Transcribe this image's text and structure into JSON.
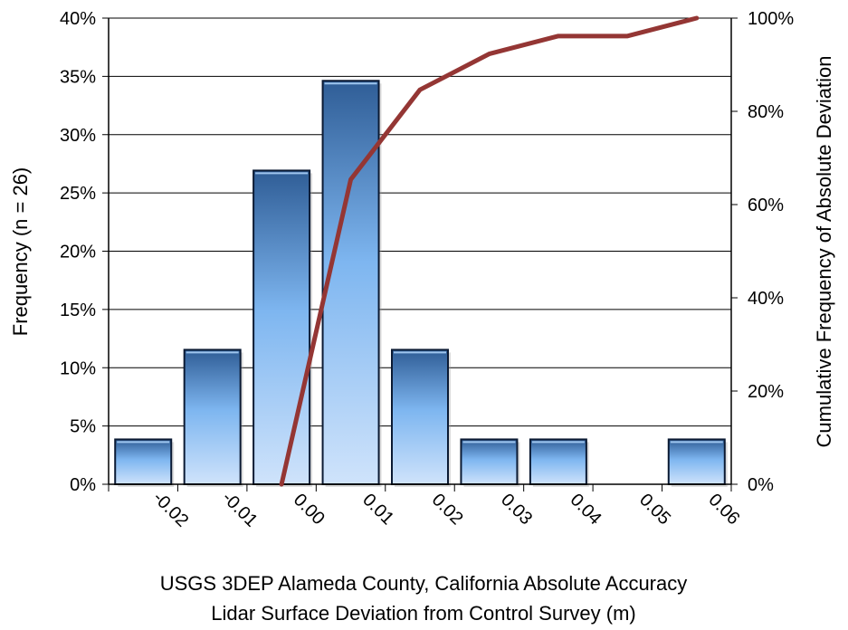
{
  "chart_data": {
    "type": "bar",
    "categories": [
      "-0.02",
      "-0.01",
      "0.00",
      "0.01",
      "0.02",
      "0.03",
      "0.04",
      "0.05",
      "0.06"
    ],
    "series": [
      {
        "type": "bar",
        "axis": "left",
        "values": [
          3.85,
          11.54,
          26.92,
          34.62,
          11.54,
          3.85,
          3.85,
          0,
          3.85
        ]
      },
      {
        "type": "line",
        "axis": "right",
        "values": [
          null,
          null,
          0,
          65.38,
          84.62,
          92.31,
          96.15,
          96.15,
          100
        ]
      }
    ],
    "xlabel": [
      "USGS 3DEP Alameda County, California Absolute Accuracy",
      "Lidar Surface Deviation from Control Survey (m)"
    ],
    "ylabel": "Frequency (n = 26)",
    "y2label": "Cumulative Frequency of Absolute Deviation",
    "ylim": [
      0,
      40
    ],
    "y2lim": [
      0,
      100
    ],
    "yticks": [
      "0%",
      "5%",
      "10%",
      "15%",
      "20%",
      "25%",
      "30%",
      "35%",
      "40%"
    ],
    "y2ticks": [
      "0%",
      "20%",
      "40%",
      "60%",
      "80%",
      "100%"
    ],
    "grid": true,
    "colors": {
      "bar_top": "#2f5d96",
      "bar_mid": "#7eb6f0",
      "bar_bottom": "#cfe3fb",
      "bar_edge": "#0b1a33",
      "line": "#943634"
    }
  }
}
